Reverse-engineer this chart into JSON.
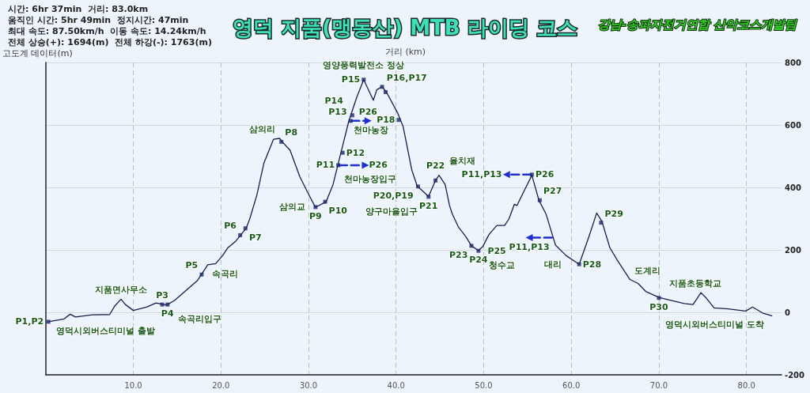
{
  "chart_data": {
    "type": "line",
    "title": "영덕 지품(맹동산) MTB 라이딩 코스",
    "subtitle": "강남-송파자전거연합 산악코스개발팀",
    "xlabel": "거리 (km)",
    "ylabel": "고도계 데이터(m)",
    "xlim": [
      0,
      84
    ],
    "xticks": [
      {
        "value": 10,
        "label": "10.0"
      },
      {
        "value": 20,
        "label": "20.0"
      },
      {
        "value": 30,
        "label": "30.0"
      },
      {
        "value": 40,
        "label": "40.0"
      },
      {
        "value": 50,
        "label": "50.0"
      },
      {
        "value": 60,
        "label": "60.0"
      },
      {
        "value": 70,
        "label": "70.0"
      },
      {
        "value": 80,
        "label": "80.0"
      }
    ],
    "ylim": [
      -200,
      800
    ],
    "yticks": [
      -200,
      0,
      200,
      400,
      600,
      800
    ],
    "grid": true,
    "series": [
      {
        "type": "line",
        "color": "#1c1c4c",
        "marker": "none",
        "line_style": "solid",
        "x": [
          0.3,
          2.1,
          2.8,
          3.4,
          5.3,
          7.3,
          7.9,
          8.6,
          9.1,
          10.0,
          11.5,
          12.6,
          13.8,
          14.7,
          16.1,
          17.3,
          18.5,
          19.4,
          20.2,
          20.8,
          21.7,
          22.3,
          22.9,
          23.3,
          24.1,
          24.9,
          26.0,
          26.7,
          27.0,
          27.9,
          29.0,
          29.9,
          30.8,
          32.0,
          32.8,
          33.7,
          34.6,
          35.5,
          36.3,
          37.4,
          37.8,
          38.4,
          38.9,
          40.2,
          40.8,
          41.8,
          42.4,
          43.7,
          44.5,
          44.9,
          45.6,
          46.1,
          46.4,
          47.1,
          48.0,
          48.6,
          49.4,
          49.9,
          50.6,
          51.5,
          52.4,
          52.9,
          53.5,
          53.8,
          54.6,
          55.5,
          56.3,
          57.1,
          58.2,
          59.4,
          60.9,
          62.0,
          62.9,
          63.5,
          64.4,
          65.3,
          66.7,
          67.6,
          68.5,
          70.0,
          71.1,
          72.9,
          73.9,
          74.8,
          75.4,
          76.3,
          77.9,
          79.9,
          80.7,
          81.9,
          82.9
        ],
        "values": [
          -30,
          -21,
          -6,
          -15,
          -8,
          -7,
          21,
          42,
          25,
          6,
          17,
          30,
          23,
          38,
          72,
          101,
          152,
          156,
          182,
          207,
          228,
          249,
          270,
          300,
          375,
          477,
          554,
          557,
          546,
          519,
          435,
          384,
          336,
          354,
          409,
          511,
          612,
          688,
          745,
          679,
          713,
          722,
          705,
          637,
          595,
          455,
          405,
          371,
          422,
          439,
          409,
          342,
          316,
          274,
          241,
          213,
          198,
          211,
          249,
          278,
          278,
          300,
          346,
          342,
          388,
          439,
          359,
          316,
          215,
          182,
          154,
          241,
          318,
          291,
          207,
          165,
          105,
          93,
          67,
          48,
          40,
          28,
          25,
          63,
          46,
          14,
          11,
          4,
          17,
          -3,
          -11
        ]
      },
      {
        "type": "scatter",
        "color": "#1a2a6a",
        "marker": "square",
        "x": [
          0.3,
          13.3,
          13.9,
          17.8,
          22.2,
          22.8,
          26.9,
          30.8,
          31.9,
          33.4,
          33.9,
          34.8,
          35.0,
          36.3,
          38.4,
          38.8,
          40.3,
          42.5,
          43.7,
          44.5,
          48.6,
          49.4,
          55.5,
          56.4,
          60.9,
          63.4,
          70.0
        ],
        "values": [
          -30,
          25,
          25,
          121,
          247,
          269,
          546,
          337,
          354,
          471,
          511,
          613,
          631,
          745,
          722,
          705,
          616,
          403,
          370,
          422,
          213,
          197,
          441,
          359,
          154,
          287,
          46
        ]
      },
      {
        "type": "line",
        "color": "#1f2fd0",
        "marker": "triangle",
        "line_style": "dashed",
        "x": [
          34.9,
          36.8
        ],
        "values": [
          613,
          613
        ]
      },
      {
        "type": "line",
        "color": "#1f2fd0",
        "marker": "triangle",
        "line_style": "dashed",
        "x": [
          33.5,
          36.5
        ],
        "values": [
          471,
          471
        ]
      },
      {
        "type": "line",
        "color": "#1f2fd0",
        "marker": "triangle",
        "line_style": "dashed",
        "x": [
          55.4,
          52.6
        ],
        "values": [
          441,
          441
        ]
      },
      {
        "type": "line",
        "color": "#1f2fd0",
        "marker": "triangle",
        "line_style": "dashed",
        "x": [
          57.8,
          55.2
        ],
        "values": [
          239,
          239
        ]
      }
    ],
    "annotations": [
      "시간: 6hr 37min  거리: 83.0km",
      "움직인 시간: 5hr 49min  정지시간: 47min",
      "최대 속도: 87.50km/h  이동 속도: 14.24km/h",
      "전체 상승(+): 1694(m)  전체 하강(-): 1763(m)",
      {
        "text": "P1,P2",
        "x": 0.3,
        "y": -30
      },
      {
        "text": "P3",
        "x": 13.3,
        "y": 25
      },
      {
        "text": "P4",
        "x": 13.9,
        "y": 25
      },
      {
        "text": "P5",
        "x": 17.8,
        "y": 121
      },
      {
        "text": "P6",
        "x": 22.2,
        "y": 247
      },
      {
        "text": "P7",
        "x": 22.8,
        "y": 269
      },
      {
        "text": "P8",
        "x": 26.9,
        "y": 546
      },
      {
        "text": "P9",
        "x": 30.8,
        "y": 337
      },
      {
        "text": "P10",
        "x": 31.9,
        "y": 354
      },
      {
        "text": "P11",
        "x": 33.4,
        "y": 471
      },
      {
        "text": "P12",
        "x": 33.9,
        "y": 511
      },
      {
        "text": "P13",
        "x": 34.8,
        "y": 613
      },
      {
        "text": "P14",
        "x": 35.0,
        "y": 631
      },
      {
        "text": "P15",
        "x": 36.3,
        "y": 745
      },
      {
        "text": "P16,P17",
        "x": 38.4,
        "y": 722
      },
      {
        "text": "P18",
        "x": 40.3,
        "y": 616
      },
      {
        "text": "P20,P19",
        "x": 42.5,
        "y": 403
      },
      {
        "text": "P21",
        "x": 43.7,
        "y": 370
      },
      {
        "text": "P22",
        "x": 44.5,
        "y": 422
      },
      {
        "text": "P23",
        "x": 48.6,
        "y": 213
      },
      {
        "text": "P24",
        "x": 49.4,
        "y": 197
      },
      {
        "text": "P25",
        "x": 49.4,
        "y": 197
      },
      {
        "text": "P26",
        "x": 55.5,
        "y": 441
      },
      {
        "text": "P27",
        "x": 56.4,
        "y": 359
      },
      {
        "text": "P28",
        "x": 60.9,
        "y": 154
      },
      {
        "text": "P29",
        "x": 63.4,
        "y": 287
      },
      {
        "text": "P30",
        "x": 70.0,
        "y": 46
      },
      {
        "text": "P26",
        "x": 36.8,
        "y": 613
      },
      {
        "text": "P26",
        "x": 36.5,
        "y": 471
      },
      {
        "text": "P11,P13",
        "x": 52.6,
        "y": 441
      },
      {
        "text": "P11,P13",
        "x": 55.2,
        "y": 239
      },
      {
        "text": "영덕시외버스티미널 출발",
        "x": 0.3,
        "y": -30
      },
      {
        "text": "지품면사무소",
        "x": 8.6,
        "y": 42
      },
      {
        "text": "속곡리",
        "x": 18.5,
        "y": 152
      },
      {
        "text": "속곡리입구",
        "x": 13.9,
        "y": 25
      },
      {
        "text": "삼의리",
        "x": 26.7,
        "y": 557
      },
      {
        "text": "삼의교",
        "x": 30.8,
        "y": 337
      },
      {
        "text": "천마농장입구",
        "x": 31.9,
        "y": 354
      },
      {
        "text": "천마농장",
        "x": 34.6,
        "y": 612
      },
      {
        "text": "영양풍력발전소 정상",
        "x": 36.3,
        "y": 745
      },
      {
        "text": "양구마을입구",
        "x": 43.7,
        "y": 370
      },
      {
        "text": "율치재",
        "x": 44.9,
        "y": 439
      },
      {
        "text": "청수교",
        "x": 49.4,
        "y": 197
      },
      {
        "text": "대리",
        "x": 59.4,
        "y": 182
      },
      {
        "text": "도계리",
        "x": 66.7,
        "y": 105
      },
      {
        "text": "지품초등학교",
        "x": 70.0,
        "y": 46
      },
      {
        "text": "영덕시외버스티미널 도착",
        "x": 82.9,
        "y": -11
      }
    ]
  }
}
